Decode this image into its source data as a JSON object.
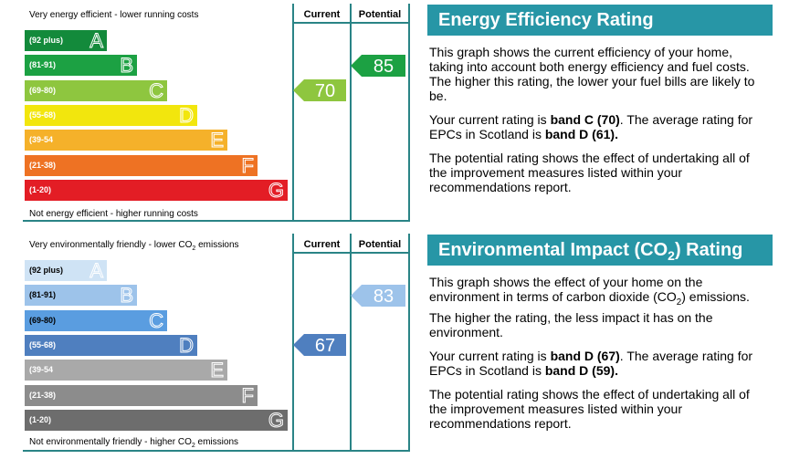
{
  "energy_chart": {
    "header_current": "Current",
    "header_potential": "Potential",
    "top_text": "Very energy efficient - lower running costs",
    "bottom_text": "Not energy efficient - higher running costs"
  },
  "environment_chart": {
    "header_current": "Current",
    "header_potential": "Potential",
    "top_text_prefix": "Very environmentally friendly - lower CO",
    "top_text_sub": "2",
    "top_text_suffix": " emissions",
    "bottom_text_prefix": "Not environmentally friendly - higher CO",
    "bottom_text_sub": "2",
    "bottom_text_suffix": " emissions"
  },
  "energy_info": {
    "title": "Energy Efficiency Rating",
    "p1": "This graph shows the current efficiency of your home, taking into account both energy efficiency and fuel costs. The higher this rating, the lower your fuel bills are likely to be.",
    "p2_prefix": "Your current rating is ",
    "p2_bold1": "band C (70)",
    "p2_mid": ". The average rating for EPCs in Scotland is ",
    "p2_bold2": "band D (61).",
    "p3": "The potential rating shows the effect of undertaking all of the improvement measures listed within your recommendations report."
  },
  "environment_info": {
    "title_prefix": "Environmental Impact (CO",
    "title_sub": "2",
    "title_suffix": ") Rating",
    "p1_prefix": "This graph shows the effect of your home on the environment in terms of carbon dioxide (CO",
    "p1_sub": "2",
    "p1_suffix": ") emissions. The higher the rating, the less impact it has on the environment.",
    "p2_prefix": "Your current rating is ",
    "p2_bold1": "band D (67)",
    "p2_mid": ". The average rating for EPCs in Scotland is ",
    "p2_bold2": "band D (59).",
    "p3": "The potential rating shows the effect of undertaking all of the improvement measures listed within your recommendations report."
  },
  "chart_data": [
    {
      "type": "bar",
      "name": "energy-efficiency",
      "bands": [
        {
          "letter": "A",
          "range": "(92 plus)",
          "color": "#138a3b"
        },
        {
          "letter": "B",
          "range": "(81-91)",
          "color": "#1ca143"
        },
        {
          "letter": "C",
          "range": "(69-80)",
          "color": "#8ec63f"
        },
        {
          "letter": "D",
          "range": "(55-68)",
          "color": "#f2e60d"
        },
        {
          "letter": "E",
          "range": "(39-54",
          "color": "#f5b12a"
        },
        {
          "letter": "F",
          "range": "(21-38)",
          "color": "#ee7223"
        },
        {
          "letter": "G",
          "range": "(1-20)",
          "color": "#e31d25"
        }
      ],
      "current": {
        "value": 70,
        "band": "C",
        "color": "#8ec63f"
      },
      "potential": {
        "value": 85,
        "band": "B",
        "color": "#1ca143"
      }
    },
    {
      "type": "bar",
      "name": "environmental-impact",
      "bands": [
        {
          "letter": "A",
          "range": "(92 plus)",
          "color": "#cfe3f5"
        },
        {
          "letter": "B",
          "range": "(81-91)",
          "color": "#9dc3ea"
        },
        {
          "letter": "C",
          "range": "(69-80)",
          "color": "#5a9de0"
        },
        {
          "letter": "D",
          "range": "(55-68)",
          "color": "#4f7fbf"
        },
        {
          "letter": "E",
          "range": "(39-54",
          "color": "#a9a9a9"
        },
        {
          "letter": "F",
          "range": "(21-38)",
          "color": "#8c8c8c"
        },
        {
          "letter": "G",
          "range": "(1-20)",
          "color": "#6d6d6d"
        }
      ],
      "current": {
        "value": 67,
        "band": "D",
        "color": "#4f7fbf"
      },
      "potential": {
        "value": 83,
        "band": "B",
        "color": "#9dc3ea"
      }
    }
  ]
}
